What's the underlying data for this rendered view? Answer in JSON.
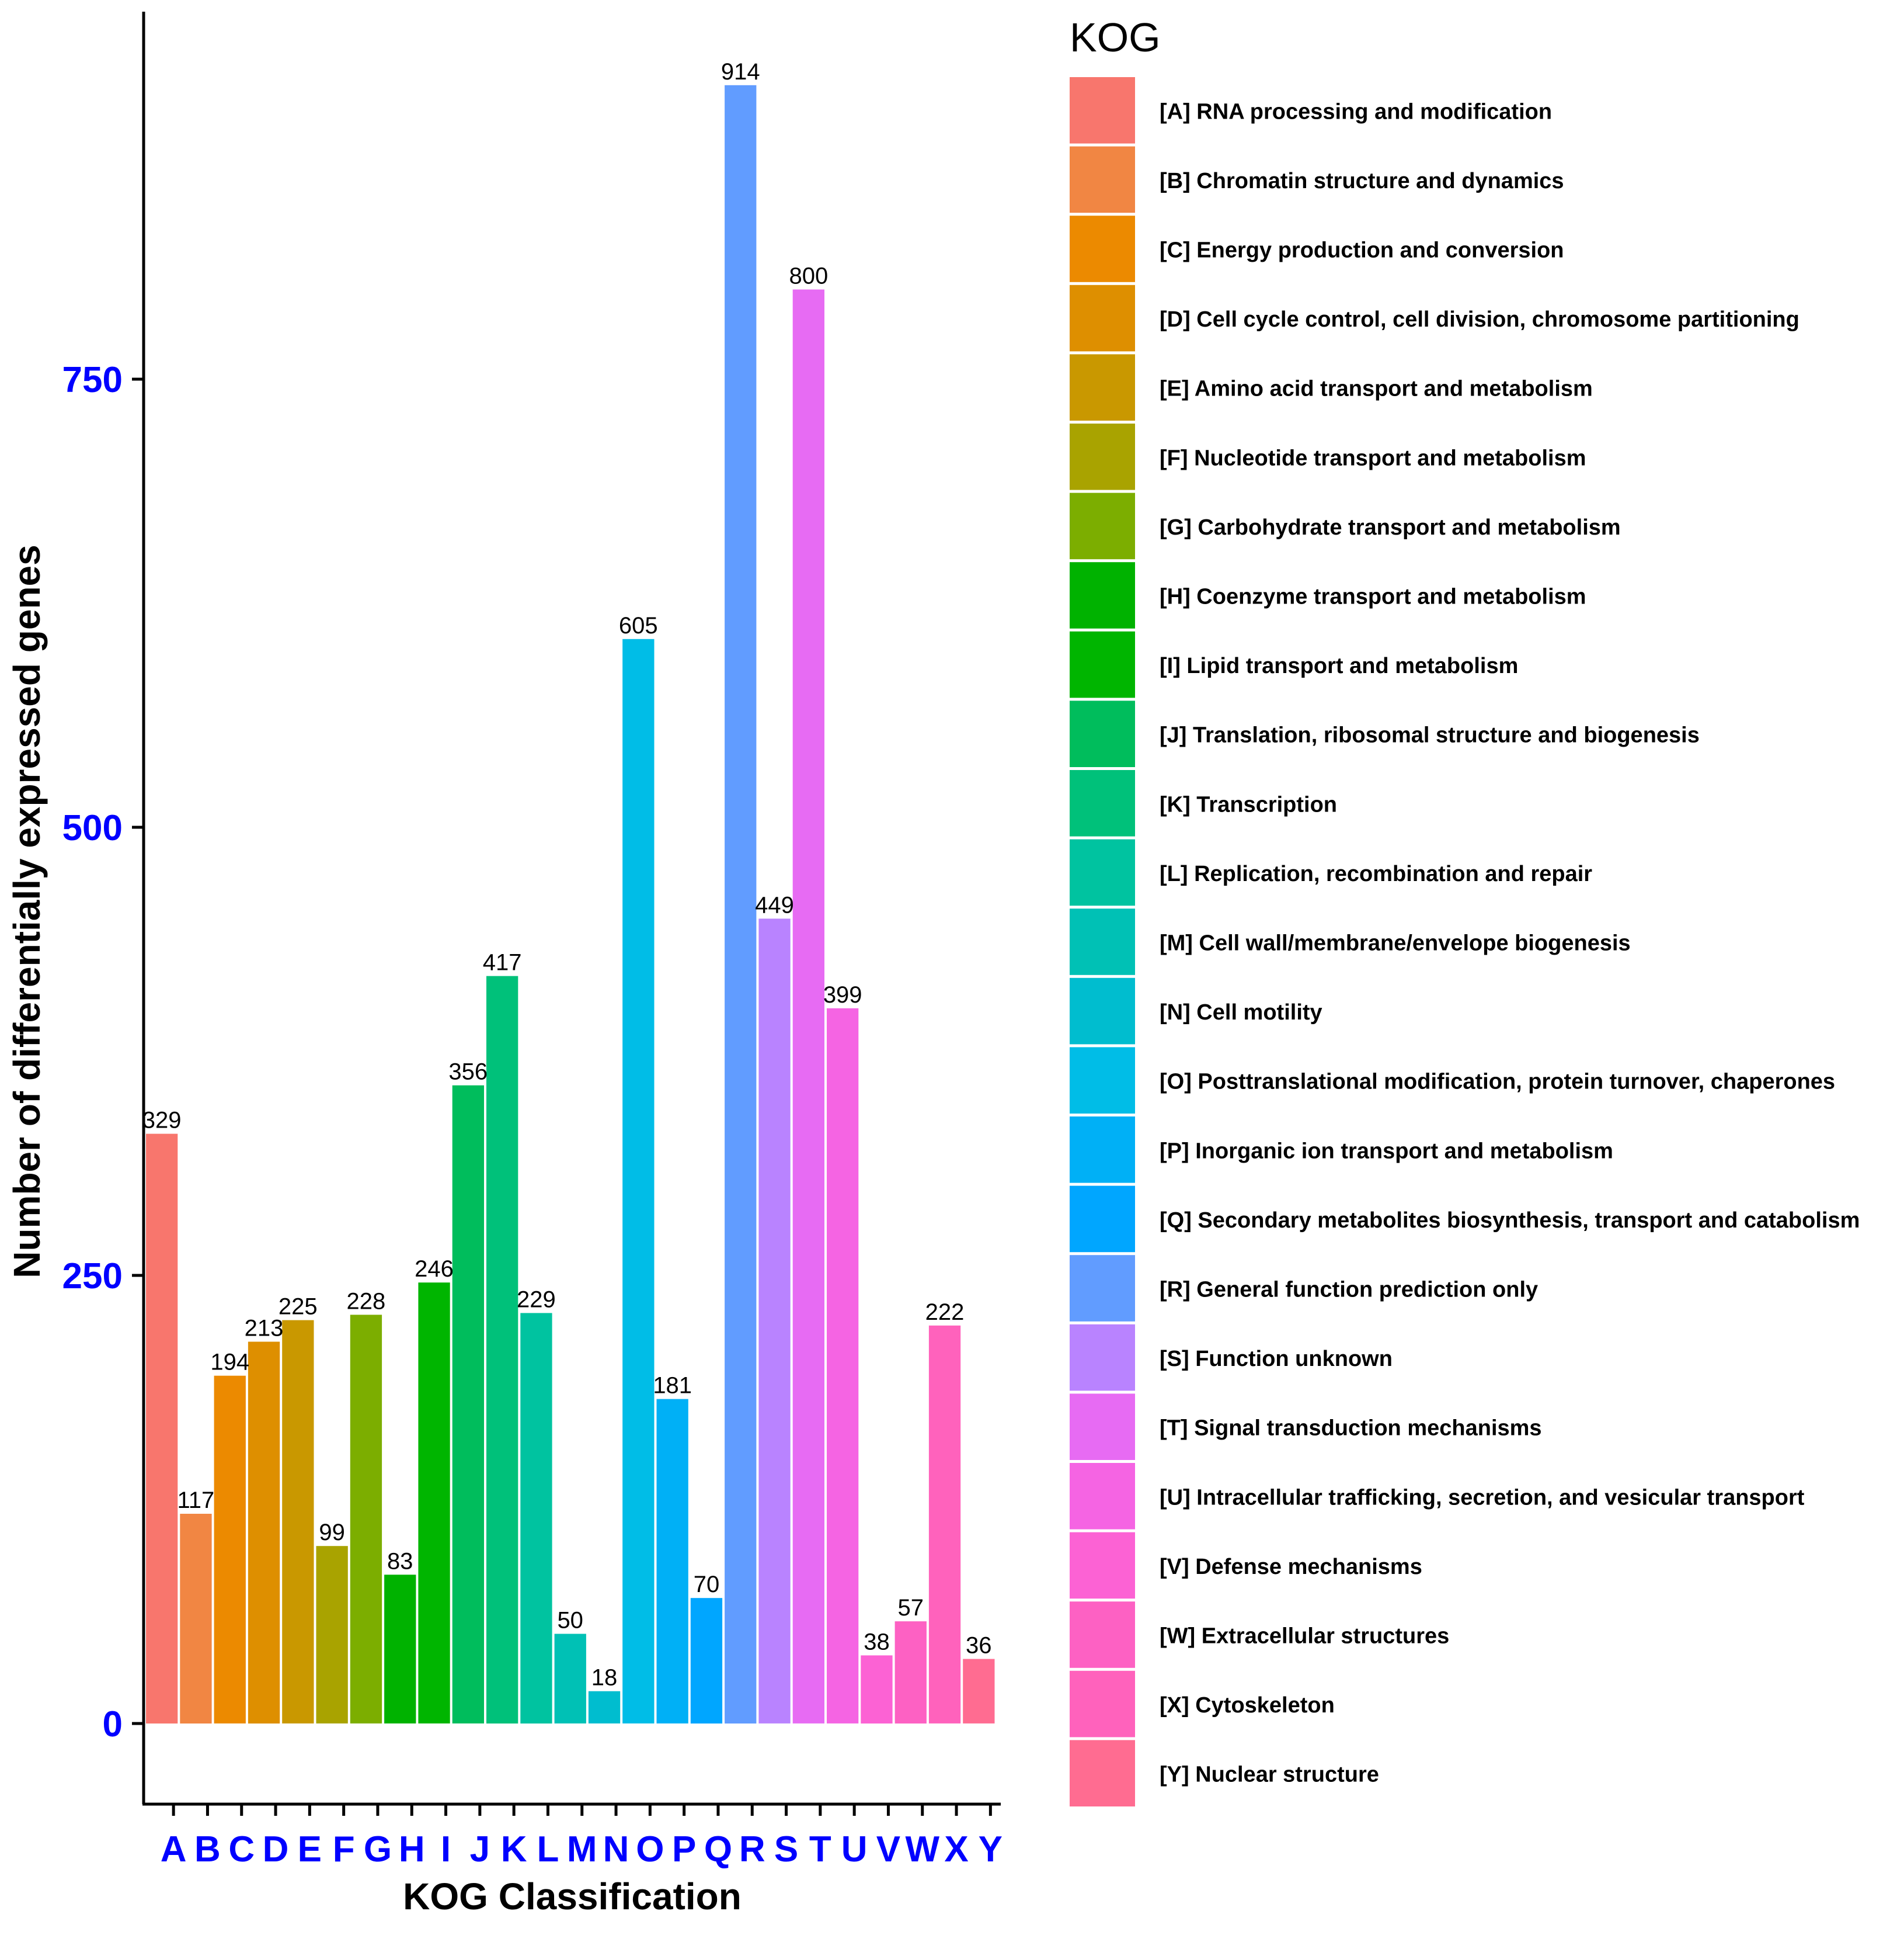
{
  "chart_data": {
    "type": "bar",
    "categories": [
      "A",
      "B",
      "C",
      "D",
      "E",
      "F",
      "G",
      "H",
      "I",
      "J",
      "K",
      "L",
      "M",
      "N",
      "O",
      "P",
      "Q",
      "R",
      "S",
      "T",
      "U",
      "V",
      "W",
      "X",
      "Y"
    ],
    "values": [
      329,
      117,
      194,
      213,
      225,
      99,
      228,
      83,
      246,
      356,
      417,
      229,
      50,
      18,
      605,
      181,
      70,
      914,
      449,
      800,
      399,
      38,
      57,
      222,
      36
    ],
    "colors": [
      "#F8766D",
      "#F18643",
      "#EC8A00",
      "#DE8F00",
      "#C99800",
      "#A9A300",
      "#7CAE00",
      "#00B200",
      "#00B500",
      "#00BD5C",
      "#00C17A",
      "#00C3A0",
      "#00C1B5",
      "#00BDCF",
      "#00BDE7",
      "#00B0F6",
      "#00A6FF",
      "#619CFF",
      "#B983FF",
      "#E76BF3",
      "#F564E3",
      "#FC62D4",
      "#FD61C3",
      "#FF62BC",
      "#FF6C91"
    ],
    "xlabel": "KOG Classification",
    "ylabel": "Number of differentially expressed genes",
    "yticks": [
      0,
      250,
      500,
      750
    ],
    "ylim": [
      -45,
      955
    ],
    "tick_color": "#0000FF",
    "grid": false,
    "legend": {
      "title": "KOG",
      "placement": "right",
      "entries": [
        "[A] RNA processing and modification",
        "[B] Chromatin structure and dynamics",
        "[C] Energy production and conversion",
        "[D] Cell cycle control, cell division, chromosome partitioning",
        "[E] Amino acid transport and metabolism",
        "[F] Nucleotide transport and metabolism",
        "[G] Carbohydrate transport and metabolism",
        "[H] Coenzyme transport and metabolism",
        "[I] Lipid transport and metabolism",
        "[J] Translation, ribosomal structure and biogenesis",
        "[K] Transcription",
        "[L] Replication, recombination and repair",
        "[M] Cell wall/membrane/envelope biogenesis",
        "[N] Cell motility",
        "[O] Posttranslational modification, protein turnover, chaperones",
        "[P] Inorganic ion transport and metabolism",
        "[Q] Secondary metabolites biosynthesis, transport and catabolism",
        "[R] General function prediction only",
        "[S] Function unknown",
        "[T] Signal transduction mechanisms",
        "[U] Intracellular trafficking, secretion, and vesicular transport",
        "[V] Defense mechanisms",
        "[W] Extracellular structures",
        "[X] Cytoskeleton",
        "[Y] Nuclear structure"
      ]
    }
  }
}
